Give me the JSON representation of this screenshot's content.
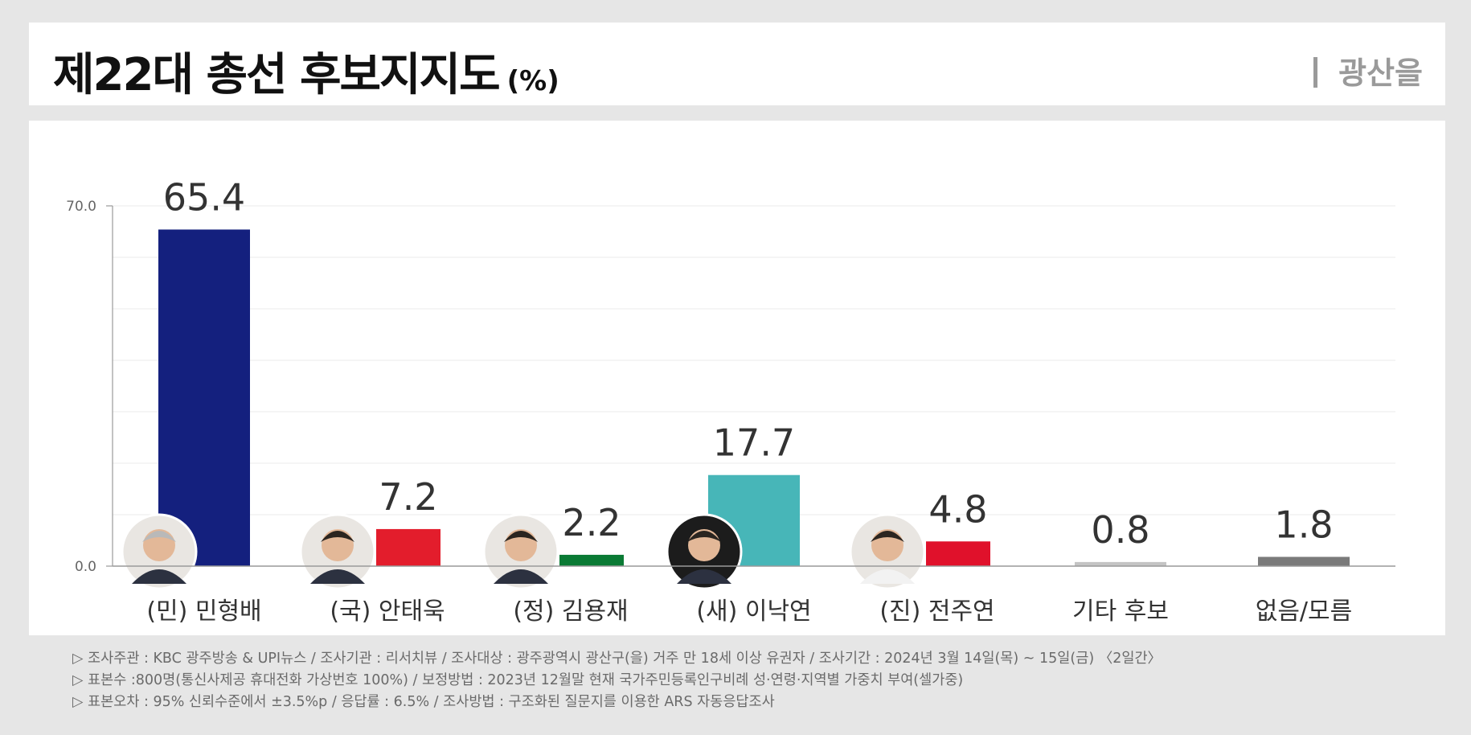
{
  "header": {
    "title": "제22대 총선 후보지지도",
    "title_unit": "(%)",
    "region": "광산을"
  },
  "chart_data": {
    "type": "bar",
    "categories": [
      "(민) 민형배",
      "(국) 안태욱",
      "(정) 김용재",
      "(새) 이낙연",
      "(진) 전주연",
      "기타 후보",
      "없음/모름"
    ],
    "values": [
      65.4,
      7.2,
      2.2,
      17.7,
      4.8,
      0.8,
      1.8
    ],
    "value_labels": [
      "65.4",
      "7.2",
      "2.2",
      "17.7",
      "4.8",
      "0.8",
      "1.8"
    ],
    "colors": [
      "#14207e",
      "#e31d2c",
      "#0a7a34",
      "#47b6b8",
      "#e0112b",
      "#c4c4c4",
      "#7a7a7a"
    ],
    "has_photo": [
      true,
      true,
      true,
      true,
      true,
      false,
      false
    ],
    "photo_names": [
      "candidate-photo-min-hyungbae",
      "candidate-photo-an-taeuk",
      "candidate-photo-kim-yongjae",
      "candidate-photo-lee-nakyon",
      "candidate-photo-jeon-juyeon"
    ],
    "ylim": [
      0,
      70
    ],
    "yticks": [
      "0.0",
      "70.0"
    ],
    "grid": true,
    "xlabel": "",
    "ylabel": ""
  },
  "footer": {
    "lines": [
      "▷ 조사주관 : KBC 광주방송 & UPI뉴스 / 조사기관 : 리서치뷰 / 조사대상 : 광주광역시 광산구(을) 거주 만 18세 이상 유권자 / 조사기간 : 2024년 3월 14일(목) ~ 15일(금) 〈2일간〉",
      "▷ 표본수 :800명(통신사제공 휴대전화 가상번호 100%) / 보정방법 : 2023년 12월말 현재 국가주민등록인구비례 성·연령·지역별 가중치 부여(셀가중)",
      "▷ 표본오차 : 95% 신뢰수준에서 ±3.5%p / 응답률 : 6.5% / 조사방법 : 구조화된 질문지를 이용한 ARS 자동응답조사"
    ]
  }
}
